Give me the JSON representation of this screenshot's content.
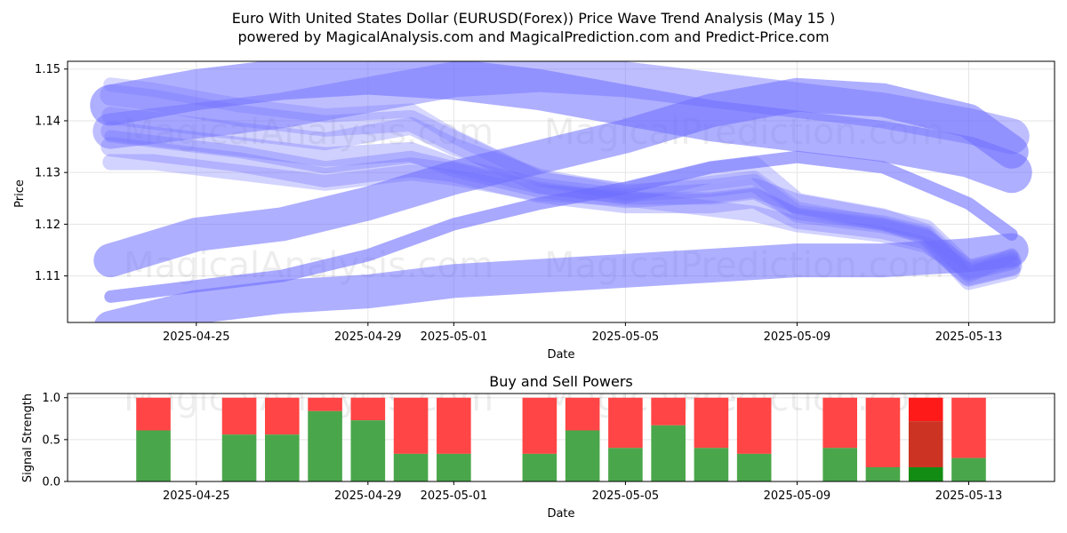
{
  "page": {
    "title": "Euro With United States Dollar (EURUSD(Forex)) Price Wave Trend Analysis (May 15 )",
    "subtitle": "powered by MagicalAnalysis.com and MagicalPrediction.com and Predict-Price.com",
    "watermarks": [
      "MagicalAnalysis.com",
      "MagicalPrediction.com"
    ]
  },
  "colors": {
    "wave": "#6e6eff",
    "buy": "#4aa64a",
    "sell": "#ff4545",
    "buy_strong": "#138c13",
    "sell_strong": "#ff1a1a",
    "overlap": "#cc3322",
    "grid": "#e5e5e5"
  },
  "chart_data": [
    {
      "type": "line",
      "title": "",
      "xlabel": "Date",
      "ylabel": "Price",
      "xlim": [
        "2025-04-22",
        "2025-05-15"
      ],
      "ylim": [
        1.101,
        1.1515
      ],
      "x_ticks": [
        "2025-04-25",
        "2025-04-29",
        "2025-05-01",
        "2025-05-05",
        "2025-05-09",
        "2025-05-13"
      ],
      "y_ticks": [
        1.11,
        1.12,
        1.13,
        1.14,
        1.15
      ],
      "grid": true,
      "series": [
        {
          "x": [
            "2025-04-23",
            "2025-04-25",
            "2025-04-27",
            "2025-04-29",
            "2025-05-01",
            "2025-05-03",
            "2025-05-05",
            "2025-05-07",
            "2025-05-09",
            "2025-05-11",
            "2025-05-13",
            "2025-05-14"
          ],
          "y": [
            1.1,
            1.104,
            1.106,
            1.107,
            1.109,
            1.11,
            1.111,
            1.112,
            1.113,
            1.113,
            1.114,
            1.115
          ],
          "width": 38,
          "opacity": 0.55
        },
        {
          "x": [
            "2025-04-23",
            "2025-04-25",
            "2025-04-27",
            "2025-04-29",
            "2025-05-01",
            "2025-05-03",
            "2025-05-05",
            "2025-05-07",
            "2025-05-09",
            "2025-05-11",
            "2025-05-13",
            "2025-05-14"
          ],
          "y": [
            1.113,
            1.118,
            1.12,
            1.124,
            1.129,
            1.133,
            1.137,
            1.142,
            1.145,
            1.144,
            1.14,
            1.134
          ],
          "width": 38,
          "opacity": 0.55
        },
        {
          "x": [
            "2025-04-23",
            "2025-04-25",
            "2025-04-27",
            "2025-04-29",
            "2025-05-01",
            "2025-05-03",
            "2025-05-05",
            "2025-05-07",
            "2025-05-09",
            "2025-05-11",
            "2025-05-13",
            "2025-05-14"
          ],
          "y": [
            1.143,
            1.146,
            1.148,
            1.149,
            1.148,
            1.146,
            1.143,
            1.14,
            1.138,
            1.136,
            1.133,
            1.13
          ],
          "width": 46,
          "opacity": 0.55
        },
        {
          "x": [
            "2025-04-23",
            "2025-04-25",
            "2025-04-27",
            "2025-04-29",
            "2025-05-01",
            "2025-05-03",
            "2025-05-05",
            "2025-05-07",
            "2025-05-09",
            "2025-05-11",
            "2025-05-13",
            "2025-05-14"
          ],
          "y": [
            1.138,
            1.14,
            1.142,
            1.145,
            1.148,
            1.149,
            1.148,
            1.146,
            1.144,
            1.142,
            1.139,
            1.137
          ],
          "width": 40,
          "opacity": 0.45
        },
        {
          "x": [
            "2025-04-23",
            "2025-04-25",
            "2025-04-27",
            "2025-04-29",
            "2025-05-01",
            "2025-05-03",
            "2025-05-05",
            "2025-05-07",
            "2025-05-09",
            "2025-05-11",
            "2025-05-13",
            "2025-05-14"
          ],
          "y": [
            1.106,
            1.108,
            1.11,
            1.114,
            1.12,
            1.124,
            1.127,
            1.131,
            1.133,
            1.131,
            1.124,
            1.118
          ],
          "width": 14,
          "opacity": 0.6
        },
        {
          "x": [
            "2025-04-23",
            "2025-04-24",
            "2025-04-26",
            "2025-04-28",
            "2025-04-30",
            "2025-05-01",
            "2025-05-03",
            "2025-05-05",
            "2025-05-07",
            "2025-05-08",
            "2025-05-09",
            "2025-05-11",
            "2025-05-12",
            "2025-05-13",
            "2025-05-14"
          ],
          "y": [
            1.145,
            1.144,
            1.141,
            1.139,
            1.14,
            1.136,
            1.128,
            1.126,
            1.13,
            1.131,
            1.124,
            1.121,
            1.118,
            1.11,
            1.112
          ],
          "width": 24,
          "opacity": 0.3
        },
        {
          "x": [
            "2025-04-23",
            "2025-04-24",
            "2025-04-26",
            "2025-04-28",
            "2025-04-30",
            "2025-05-01",
            "2025-05-03",
            "2025-05-05",
            "2025-05-07",
            "2025-05-08",
            "2025-05-09",
            "2025-05-11",
            "2025-05-12",
            "2025-05-13",
            "2025-05-14"
          ],
          "y": [
            1.138,
            1.137,
            1.135,
            1.133,
            1.134,
            1.131,
            1.127,
            1.125,
            1.126,
            1.127,
            1.124,
            1.121,
            1.119,
            1.111,
            1.113
          ],
          "width": 22,
          "opacity": 0.32
        },
        {
          "x": [
            "2025-04-23",
            "2025-04-24",
            "2025-04-26",
            "2025-04-28",
            "2025-04-30",
            "2025-05-01",
            "2025-05-03",
            "2025-05-05",
            "2025-05-07",
            "2025-05-08",
            "2025-05-09",
            "2025-05-11",
            "2025-05-12",
            "2025-05-13",
            "2025-05-14"
          ],
          "y": [
            1.135,
            1.134,
            1.132,
            1.129,
            1.131,
            1.13,
            1.126,
            1.124,
            1.124,
            1.125,
            1.121,
            1.119,
            1.117,
            1.11,
            1.112
          ],
          "width": 22,
          "opacity": 0.32
        },
        {
          "x": [
            "2025-04-23",
            "2025-04-24",
            "2025-04-26",
            "2025-04-28",
            "2025-04-30",
            "2025-05-01",
            "2025-05-03",
            "2025-05-05",
            "2025-05-07",
            "2025-05-08",
            "2025-05-09",
            "2025-05-11",
            "2025-05-12",
            "2025-05-13",
            "2025-05-14"
          ],
          "y": [
            1.141,
            1.14,
            1.138,
            1.136,
            1.139,
            1.135,
            1.129,
            1.126,
            1.127,
            1.128,
            1.122,
            1.12,
            1.118,
            1.109,
            1.111
          ],
          "width": 20,
          "opacity": 0.3
        },
        {
          "x": [
            "2025-04-23",
            "2025-04-24",
            "2025-04-26",
            "2025-04-28",
            "2025-04-30",
            "2025-05-01",
            "2025-05-03",
            "2025-05-05",
            "2025-05-07",
            "2025-05-08",
            "2025-05-09",
            "2025-05-11",
            "2025-05-12",
            "2025-05-13",
            "2025-05-14"
          ],
          "y": [
            1.132,
            1.132,
            1.13,
            1.128,
            1.13,
            1.129,
            1.126,
            1.125,
            1.123,
            1.122,
            1.12,
            1.118,
            1.116,
            1.111,
            1.113
          ],
          "width": 18,
          "opacity": 0.3
        },
        {
          "x": [
            "2025-04-23",
            "2025-04-24",
            "2025-04-26",
            "2025-04-28",
            "2025-04-30",
            "2025-05-01",
            "2025-05-03",
            "2025-05-05",
            "2025-05-07",
            "2025-05-08",
            "2025-05-09",
            "2025-05-11",
            "2025-05-12",
            "2025-05-13",
            "2025-05-14"
          ],
          "y": [
            1.147,
            1.146,
            1.143,
            1.141,
            1.142,
            1.137,
            1.129,
            1.126,
            1.128,
            1.129,
            1.123,
            1.12,
            1.118,
            1.11,
            1.114
          ],
          "width": 16,
          "opacity": 0.28
        },
        {
          "x": [
            "2025-04-23",
            "2025-04-24",
            "2025-04-26",
            "2025-04-28",
            "2025-04-30",
            "2025-05-01",
            "2025-05-03",
            "2025-05-05",
            "2025-05-07",
            "2025-05-08",
            "2025-05-09",
            "2025-05-11",
            "2025-05-12",
            "2025-05-13",
            "2025-05-14"
          ],
          "y": [
            1.137,
            1.136,
            1.134,
            1.131,
            1.133,
            1.131,
            1.127,
            1.125,
            1.125,
            1.126,
            1.122,
            1.12,
            1.118,
            1.112,
            1.114
          ],
          "width": 14,
          "opacity": 0.34
        }
      ]
    },
    {
      "type": "bar",
      "title": "Buy and Sell Powers",
      "xlabel": "Date",
      "ylabel": "Signal Strength",
      "xlim": [
        "2025-04-22",
        "2025-05-15"
      ],
      "ylim": [
        0,
        1.05
      ],
      "x_ticks": [
        "2025-04-25",
        "2025-04-29",
        "2025-05-01",
        "2025-05-05",
        "2025-05-09",
        "2025-05-13"
      ],
      "y_ticks": [
        0.0,
        0.5,
        1.0
      ],
      "grid": true,
      "bars": [
        {
          "date": "2025-04-24",
          "buy": 0.61,
          "sell": 0.39
        },
        {
          "date": "2025-04-26",
          "buy": 0.56,
          "sell": 0.44
        },
        {
          "date": "2025-04-27",
          "buy": 0.56,
          "sell": 0.44
        },
        {
          "date": "2025-04-28",
          "buy": 0.84,
          "sell": 0.16
        },
        {
          "date": "2025-04-29",
          "buy": 0.73,
          "sell": 0.27
        },
        {
          "date": "2025-04-30",
          "buy": 0.33,
          "sell": 0.67
        },
        {
          "date": "2025-05-01",
          "buy": 0.33,
          "sell": 0.67
        },
        {
          "date": "2025-05-03",
          "buy": 0.33,
          "sell": 0.67
        },
        {
          "date": "2025-05-04",
          "buy": 0.61,
          "sell": 0.39
        },
        {
          "date": "2025-05-05",
          "buy": 0.4,
          "sell": 0.6
        },
        {
          "date": "2025-05-06",
          "buy": 0.67,
          "sell": 0.33
        },
        {
          "date": "2025-05-07",
          "buy": 0.4,
          "sell": 0.6
        },
        {
          "date": "2025-05-08",
          "buy": 0.33,
          "sell": 0.67
        },
        {
          "date": "2025-05-10",
          "buy": 0.4,
          "sell": 0.6
        },
        {
          "date": "2025-05-11",
          "buy": 0.17,
          "sell": 0.83
        },
        {
          "date": "2025-05-12",
          "buy": 0.17,
          "sell": 0.83,
          "highlight": true,
          "overlap_top": 0.72
        },
        {
          "date": "2025-05-13",
          "buy": 0.28,
          "sell": 0.72
        }
      ]
    }
  ]
}
